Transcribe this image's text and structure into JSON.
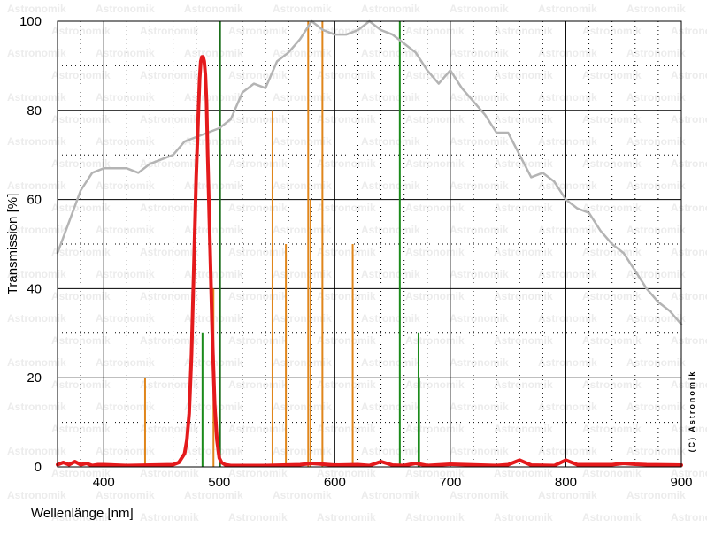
{
  "chart_data": {
    "type": "line",
    "title": "",
    "xlabel": "Wellenlänge [nm]",
    "ylabel": "Transmission [%]",
    "xlim": [
      360,
      900
    ],
    "ylim": [
      0,
      100
    ],
    "x_ticks": [
      400,
      500,
      600,
      700,
      800,
      900
    ],
    "y_ticks": [
      0,
      20,
      40,
      60,
      80,
      100
    ],
    "grid": true,
    "legend": "none",
    "credit": "(C) Astronomik",
    "watermark": "Astronomik",
    "series": [
      {
        "role": "filter-transmission",
        "color": "#e41a1c",
        "x": [
          360,
          365,
          370,
          375,
          380,
          385,
          390,
          395,
          400,
          420,
          440,
          460,
          465,
          470,
          472,
          474,
          476,
          478,
          480,
          482,
          483,
          484,
          485,
          486,
          487,
          488,
          489,
          490,
          492,
          494,
          496,
          498,
          500,
          502,
          505,
          510,
          540,
          570,
          580,
          600,
          620,
          630,
          640,
          650,
          660,
          670,
          680,
          700,
          740,
          750,
          760,
          770,
          790,
          800,
          810,
          840,
          850,
          860,
          870,
          900
        ],
        "y": [
          0.5,
          1,
          0.5,
          1.2,
          0.5,
          0.8,
          0.3,
          0.5,
          0.5,
          0.3,
          0.4,
          0.5,
          1,
          3,
          6,
          12,
          25,
          45,
          65,
          80,
          87,
          91,
          92,
          92,
          91,
          88,
          82,
          70,
          50,
          30,
          14,
          6,
          2,
          1,
          0.5,
          0.3,
          0.3,
          0.5,
          0.8,
          0.4,
          0.5,
          0.3,
          1.2,
          0.4,
          0.3,
          0.8,
          0.3,
          0.6,
          0.3,
          0.5,
          1.5,
          0.4,
          0.3,
          1.5,
          0.5,
          0.5,
          0.8,
          0.6,
          0.5,
          0.4
        ]
      },
      {
        "role": "sensor-response",
        "color": "#b4b4b4",
        "x": [
          360,
          370,
          380,
          390,
          400,
          410,
          420,
          430,
          440,
          450,
          460,
          470,
          480,
          490,
          500,
          510,
          520,
          530,
          540,
          550,
          560,
          570,
          580,
          590,
          600,
          610,
          620,
          630,
          640,
          650,
          660,
          670,
          680,
          690,
          700,
          710,
          720,
          730,
          740,
          750,
          760,
          770,
          780,
          790,
          800,
          810,
          820,
          830,
          840,
          850,
          860,
          870,
          880,
          890,
          900
        ],
        "y": [
          48,
          55,
          62,
          66,
          67,
          67,
          67,
          66,
          68,
          69,
          70,
          73,
          74,
          75,
          76,
          78,
          84,
          86,
          85,
          91,
          93,
          96,
          100,
          98,
          97,
          97,
          98,
          100,
          98,
          97,
          95,
          93,
          89,
          86,
          89,
          85,
          82,
          79,
          75,
          75,
          70,
          65,
          66,
          64,
          60,
          58,
          57,
          53,
          50,
          48,
          44,
          40,
          37,
          35,
          32
        ]
      }
    ],
    "spectral_lines": [
      {
        "x": 435.8,
        "y": 20,
        "color": "#e0861b"
      },
      {
        "x": 485.5,
        "y": 30,
        "color": "#1a8a1a"
      },
      {
        "x": 495,
        "y": 40,
        "color": "#e0861b"
      },
      {
        "x": 500.7,
        "y": 100,
        "color": "#1a6e1a"
      },
      {
        "x": 546.1,
        "y": 80,
        "color": "#e0861b"
      },
      {
        "x": 557.7,
        "y": 50,
        "color": "#e0861b"
      },
      {
        "x": 577,
        "y": 100,
        "color": "#e0861b"
      },
      {
        "x": 579,
        "y": 60,
        "color": "#e0861b"
      },
      {
        "x": 589.3,
        "y": 100,
        "color": "#e0861b"
      },
      {
        "x": 615.5,
        "y": 50,
        "color": "#e0861b"
      },
      {
        "x": 656.3,
        "y": 100,
        "color": "#1a8a1a"
      },
      {
        "x": 672.5,
        "y": 30,
        "color": "#1a8a1a"
      },
      {
        "x": 673,
        "y": 20,
        "color": "#1a8a1a"
      }
    ]
  }
}
